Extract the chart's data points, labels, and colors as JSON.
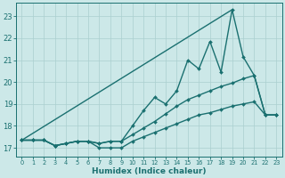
{
  "xlabel": "Humidex (Indice chaleur)",
  "bg_color": "#cce8e8",
  "grid_color": "#aacfcf",
  "line_color": "#1a7070",
  "xlim": [
    -0.5,
    23.5
  ],
  "ylim": [
    16.6,
    23.6
  ],
  "yticks": [
    17,
    18,
    19,
    20,
    21,
    22,
    23
  ],
  "xticks": [
    0,
    1,
    2,
    3,
    4,
    5,
    6,
    7,
    8,
    9,
    10,
    11,
    12,
    13,
    14,
    15,
    16,
    17,
    18,
    19,
    20,
    21,
    22,
    23
  ],
  "lines": [
    {
      "x": [
        0,
        1,
        2,
        3,
        4,
        5,
        6,
        7,
        8,
        9,
        10,
        11,
        12,
        13,
        14,
        15,
        16,
        17,
        18,
        19,
        20,
        21,
        22,
        23
      ],
      "y": [
        17.35,
        17.35,
        17.35,
        17.1,
        17.2,
        17.3,
        17.3,
        17.2,
        17.3,
        17.3,
        18.0,
        18.7,
        19.3,
        19.0,
        19.6,
        21.0,
        20.6,
        21.85,
        20.45,
        23.3,
        21.15,
        20.3,
        18.5,
        18.5
      ],
      "marker": "D",
      "ms": 2.0,
      "lw": 1.0
    },
    {
      "x": [
        0,
        1,
        2,
        3,
        4,
        5,
        6,
        7,
        8,
        9,
        10,
        11,
        12,
        13,
        14,
        15,
        16,
        17,
        18,
        19,
        20,
        21,
        22,
        23
      ],
      "y": [
        17.35,
        17.35,
        17.35,
        17.1,
        17.2,
        17.3,
        17.3,
        17.2,
        17.3,
        17.3,
        17.6,
        17.9,
        18.2,
        18.55,
        18.9,
        19.2,
        19.4,
        19.6,
        19.8,
        19.95,
        20.15,
        20.3,
        18.5,
        18.5
      ],
      "marker": "D",
      "ms": 2.0,
      "lw": 1.0
    },
    {
      "x": [
        0,
        19
      ],
      "y": [
        17.35,
        23.3
      ],
      "marker": null,
      "ms": 0,
      "lw": 1.0
    },
    {
      "x": [
        0,
        1,
        2,
        3,
        4,
        5,
        6,
        7,
        8,
        9,
        10,
        11,
        12,
        13,
        14,
        15,
        16,
        17,
        18,
        19,
        20,
        21,
        22,
        23
      ],
      "y": [
        17.35,
        17.35,
        17.35,
        17.1,
        17.2,
        17.3,
        17.3,
        17.0,
        17.0,
        17.0,
        17.3,
        17.5,
        17.7,
        17.9,
        18.1,
        18.3,
        18.5,
        18.6,
        18.75,
        18.9,
        19.0,
        19.1,
        18.5,
        18.5
      ],
      "marker": "D",
      "ms": 2.0,
      "lw": 1.0
    }
  ]
}
